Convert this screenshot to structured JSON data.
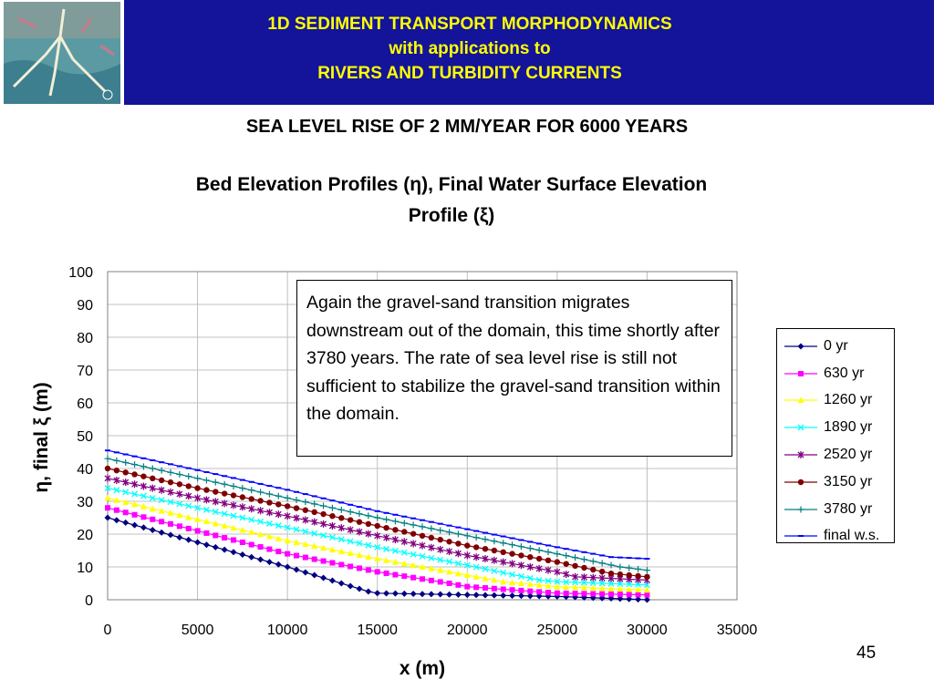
{
  "header": {
    "title_line1": "1D SEDIMENT TRANSPORT MORPHODYNAMICS",
    "title_line2": "with applications to",
    "title_line3": "RIVERS AND TURBIDITY CURRENTS"
  },
  "subtitle": "SEA LEVEL RISE OF 2 MM/YEAR FOR 6000 YEARS",
  "annotation": "Again the gravel-sand transition migrates downstream out of the domain, this time shortly after 3780 years.  The rate of sea level rise is still not sufficient to stabilize the gravel-sand transition within the domain.",
  "page_number": "45",
  "colors": {
    "banner": "#13149a",
    "banner_text": "#ffff00"
  },
  "chart_data": {
    "type": "line",
    "title_line1": "Bed Elevation Profiles (η), Final Water Surface Elevation",
    "title_line2": "Profile (ξ)",
    "xlabel": "x (m)",
    "ylabel": "η, final ξ (m)",
    "xlim": [
      0,
      35000
    ],
    "ylim": [
      0,
      100
    ],
    "xticks": [
      "0",
      "5000",
      "10000",
      "15000",
      "20000",
      "25000",
      "30000",
      "35000"
    ],
    "yticks": [
      "0",
      "10",
      "20",
      "30",
      "40",
      "50",
      "60",
      "70",
      "80",
      "90",
      "100"
    ],
    "grid": true,
    "legend_position": "right",
    "series": [
      {
        "name": "0 yr",
        "color": "#000080",
        "marker": "diamond",
        "points": [
          [
            0,
            25
          ],
          [
            5000,
            17.5
          ],
          [
            10000,
            10
          ],
          [
            14500,
            2.5
          ],
          [
            15000,
            2
          ],
          [
            20000,
            1.5
          ],
          [
            25000,
            1
          ],
          [
            30000,
            0
          ]
        ]
      },
      {
        "name": "630 yr",
        "color": "#ff00ff",
        "marker": "square",
        "points": [
          [
            0,
            28
          ],
          [
            5000,
            21
          ],
          [
            10000,
            14
          ],
          [
            15000,
            8.5
          ],
          [
            19000,
            5
          ],
          [
            20000,
            4
          ],
          [
            25000,
            2
          ],
          [
            30000,
            1.5
          ]
        ]
      },
      {
        "name": "1260 yr",
        "color": "#ffff00",
        "marker": "triangle",
        "points": [
          [
            0,
            31
          ],
          [
            5000,
            24.5
          ],
          [
            10000,
            18
          ],
          [
            15000,
            12.5
          ],
          [
            20000,
            7.5
          ],
          [
            22000,
            5.5
          ],
          [
            25000,
            4
          ],
          [
            30000,
            3
          ]
        ]
      },
      {
        "name": "1890 yr",
        "color": "#00ffff",
        "marker": "x",
        "points": [
          [
            0,
            34
          ],
          [
            5000,
            28
          ],
          [
            10000,
            22
          ],
          [
            15000,
            16
          ],
          [
            20000,
            10.5
          ],
          [
            24000,
            6
          ],
          [
            25000,
            5.5
          ],
          [
            30000,
            4.5
          ]
        ]
      },
      {
        "name": "2520 yr",
        "color": "#800080",
        "marker": "star",
        "points": [
          [
            0,
            37
          ],
          [
            5000,
            31
          ],
          [
            10000,
            25.5
          ],
          [
            15000,
            19.5
          ],
          [
            20000,
            13.5
          ],
          [
            25000,
            8.5
          ],
          [
            26000,
            7
          ],
          [
            30000,
            6
          ]
        ]
      },
      {
        "name": "3150 yr",
        "color": "#800000",
        "marker": "circle",
        "points": [
          [
            0,
            40
          ],
          [
            5000,
            34
          ],
          [
            10000,
            28.5
          ],
          [
            15000,
            22.5
          ],
          [
            20000,
            16.5
          ],
          [
            25000,
            11.5
          ],
          [
            28000,
            8
          ],
          [
            30000,
            7
          ]
        ]
      },
      {
        "name": "3780 yr",
        "color": "#008080",
        "marker": "plus",
        "points": [
          [
            0,
            43
          ],
          [
            5000,
            37
          ],
          [
            10000,
            31
          ],
          [
            15000,
            25
          ],
          [
            20000,
            19.5
          ],
          [
            25000,
            14
          ],
          [
            28500,
            10
          ],
          [
            30000,
            9
          ]
        ]
      },
      {
        "name": "final w.s.",
        "color": "#0000ff",
        "marker": "dash",
        "points": [
          [
            0,
            45.5
          ],
          [
            5000,
            39.5
          ],
          [
            10000,
            33.5
          ],
          [
            15000,
            27
          ],
          [
            20000,
            21.5
          ],
          [
            25000,
            16
          ],
          [
            28000,
            13
          ],
          [
            30000,
            12.5
          ]
        ]
      }
    ]
  }
}
